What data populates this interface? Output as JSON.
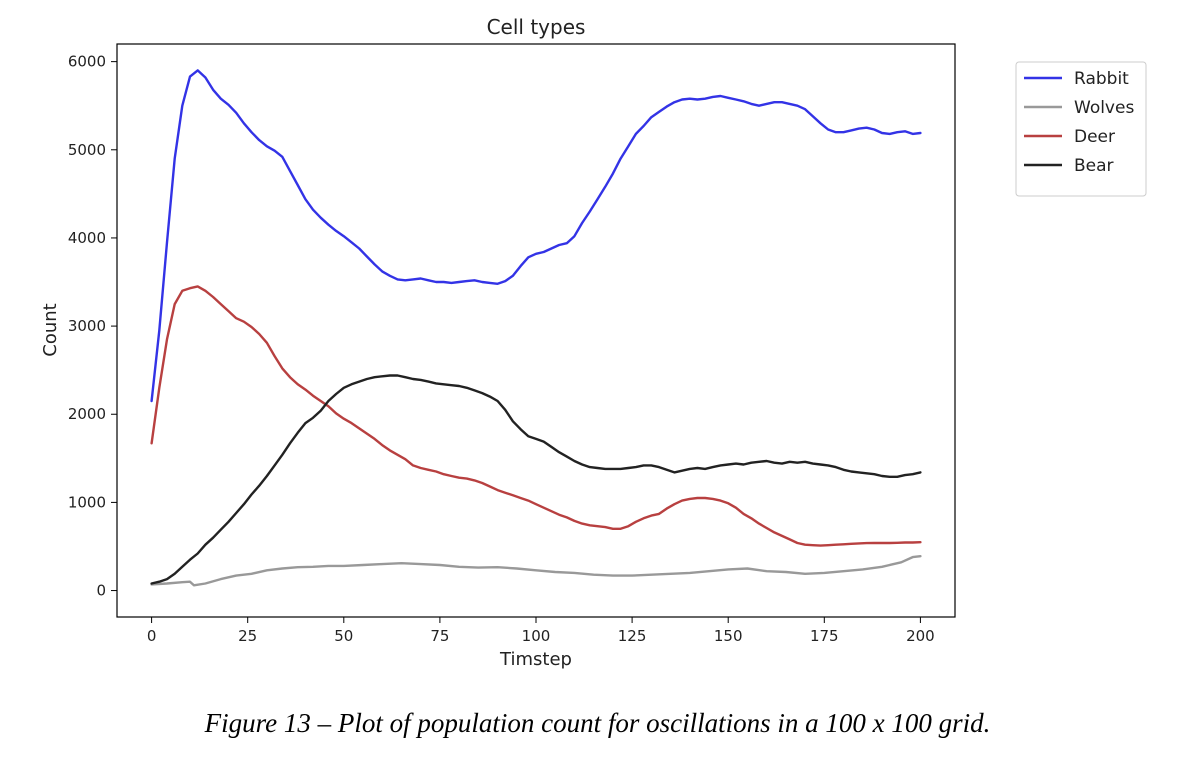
{
  "caption": "Figure 13 – Plot of population count for oscillations in a 100 x 100 grid.",
  "chart_data": {
    "type": "line",
    "title": "Cell types",
    "xlabel": "Timstep",
    "ylabel": "Count",
    "xlim": [
      -9,
      209
    ],
    "ylim": [
      -300,
      6200
    ],
    "xticks": [
      0,
      25,
      50,
      75,
      100,
      125,
      150,
      175,
      200
    ],
    "yticks": [
      0,
      1000,
      2000,
      3000,
      4000,
      5000,
      6000
    ],
    "grid": false,
    "legend_position": "outside-top-right",
    "series": [
      {
        "name": "Rabbit",
        "color": "#3333e6",
        "x": [
          0,
          2,
          4,
          6,
          8,
          10,
          12,
          14,
          16,
          18,
          20,
          22,
          24,
          26,
          28,
          30,
          32,
          34,
          36,
          38,
          40,
          42,
          44,
          46,
          48,
          50,
          52,
          54,
          56,
          58,
          60,
          62,
          64,
          66,
          68,
          70,
          72,
          74,
          76,
          78,
          80,
          82,
          84,
          86,
          88,
          90,
          92,
          94,
          96,
          98,
          100,
          102,
          104,
          106,
          108,
          110,
          112,
          114,
          116,
          118,
          120,
          122,
          124,
          126,
          128,
          130,
          132,
          134,
          136,
          138,
          140,
          142,
          144,
          146,
          148,
          150,
          152,
          154,
          156,
          158,
          160,
          162,
          164,
          166,
          168,
          170,
          172,
          174,
          176,
          178,
          180,
          182,
          184,
          186,
          188,
          190,
          192,
          194,
          196,
          198,
          200
        ],
        "values": [
          2150,
          2950,
          3950,
          4900,
          5500,
          5830,
          5900,
          5820,
          5680,
          5580,
          5510,
          5420,
          5300,
          5200,
          5110,
          5040,
          4990,
          4920,
          4760,
          4600,
          4440,
          4320,
          4230,
          4150,
          4080,
          4020,
          3950,
          3880,
          3790,
          3700,
          3620,
          3570,
          3530,
          3520,
          3530,
          3540,
          3520,
          3500,
          3500,
          3490,
          3500,
          3510,
          3520,
          3500,
          3490,
          3480,
          3510,
          3570,
          3680,
          3780,
          3820,
          3840,
          3880,
          3920,
          3940,
          4020,
          4170,
          4300,
          4440,
          4580,
          4730,
          4900,
          5040,
          5180,
          5270,
          5370,
          5430,
          5490,
          5540,
          5570,
          5580,
          5570,
          5580,
          5600,
          5610,
          5590,
          5570,
          5550,
          5520,
          5500,
          5520,
          5540,
          5540,
          5520,
          5500,
          5460,
          5380,
          5300,
          5230,
          5200,
          5200,
          5220,
          5240,
          5250,
          5230,
          5190,
          5180,
          5200,
          5210,
          5180,
          5190
        ]
      },
      {
        "name": "Wolves",
        "color": "#999999",
        "x": [
          0,
          4,
          8,
          10,
          11,
          14,
          18,
          22,
          26,
          30,
          34,
          38,
          42,
          46,
          50,
          55,
          60,
          65,
          70,
          75,
          80,
          85,
          90,
          95,
          100,
          105,
          110,
          115,
          120,
          125,
          130,
          135,
          140,
          145,
          150,
          155,
          160,
          165,
          170,
          175,
          180,
          185,
          190,
          195,
          198,
          200
        ],
        "values": [
          70,
          80,
          95,
          100,
          60,
          80,
          130,
          170,
          190,
          230,
          250,
          265,
          270,
          280,
          280,
          290,
          300,
          310,
          300,
          290,
          270,
          260,
          265,
          250,
          230,
          210,
          200,
          180,
          170,
          170,
          180,
          190,
          200,
          220,
          240,
          250,
          220,
          210,
          190,
          200,
          220,
          240,
          270,
          320,
          380,
          390
        ]
      },
      {
        "name": "Deer",
        "color": "#b84040",
        "x": [
          0,
          2,
          4,
          6,
          8,
          10,
          12,
          14,
          16,
          18,
          20,
          22,
          24,
          26,
          28,
          30,
          32,
          34,
          36,
          38,
          40,
          42,
          44,
          46,
          48,
          50,
          52,
          54,
          56,
          58,
          60,
          62,
          64,
          66,
          68,
          70,
          72,
          74,
          76,
          78,
          80,
          82,
          84,
          86,
          88,
          90,
          92,
          94,
          96,
          98,
          100,
          102,
          104,
          106,
          108,
          110,
          112,
          114,
          116,
          118,
          120,
          122,
          124,
          126,
          128,
          130,
          132,
          134,
          136,
          138,
          140,
          142,
          144,
          146,
          148,
          150,
          152,
          154,
          156,
          158,
          160,
          162,
          164,
          166,
          168,
          170,
          172,
          174,
          176,
          178,
          180,
          182,
          184,
          186,
          188,
          190,
          192,
          194,
          196,
          198,
          200
        ],
        "values": [
          1670,
          2300,
          2850,
          3250,
          3400,
          3430,
          3450,
          3400,
          3330,
          3250,
          3170,
          3090,
          3050,
          2990,
          2910,
          2810,
          2660,
          2520,
          2420,
          2340,
          2280,
          2210,
          2150,
          2090,
          2010,
          1950,
          1900,
          1840,
          1780,
          1720,
          1650,
          1590,
          1540,
          1490,
          1420,
          1390,
          1370,
          1350,
          1320,
          1300,
          1280,
          1270,
          1250,
          1220,
          1180,
          1140,
          1110,
          1080,
          1050,
          1020,
          980,
          940,
          900,
          860,
          830,
          790,
          760,
          740,
          730,
          720,
          700,
          700,
          730,
          780,
          820,
          850,
          870,
          930,
          980,
          1020,
          1040,
          1050,
          1050,
          1040,
          1020,
          990,
          940,
          870,
          820,
          760,
          710,
          660,
          620,
          580,
          540,
          520,
          515,
          510,
          515,
          520,
          525,
          530,
          535,
          538,
          540,
          540,
          540,
          542,
          545,
          545,
          548
        ]
      },
      {
        "name": "Bear",
        "color": "#222222",
        "x": [
          0,
          2,
          4,
          6,
          8,
          10,
          12,
          14,
          16,
          18,
          20,
          22,
          24,
          26,
          28,
          30,
          32,
          34,
          36,
          38,
          40,
          42,
          44,
          46,
          48,
          50,
          52,
          54,
          56,
          58,
          60,
          62,
          64,
          66,
          68,
          70,
          72,
          74,
          76,
          78,
          80,
          82,
          84,
          86,
          88,
          90,
          92,
          94,
          96,
          98,
          100,
          102,
          104,
          106,
          108,
          110,
          112,
          114,
          116,
          118,
          120,
          122,
          124,
          126,
          128,
          130,
          132,
          134,
          136,
          138,
          140,
          142,
          144,
          146,
          148,
          150,
          152,
          154,
          156,
          158,
          160,
          162,
          164,
          166,
          168,
          170,
          172,
          174,
          176,
          178,
          180,
          182,
          184,
          186,
          188,
          190,
          192,
          194,
          196,
          198,
          200
        ],
        "values": [
          80,
          100,
          130,
          190,
          270,
          350,
          420,
          520,
          600,
          690,
          780,
          880,
          980,
          1090,
          1190,
          1300,
          1420,
          1540,
          1670,
          1790,
          1900,
          1960,
          2040,
          2150,
          2230,
          2300,
          2340,
          2370,
          2400,
          2420,
          2430,
          2440,
          2440,
          2420,
          2400,
          2390,
          2370,
          2350,
          2340,
          2330,
          2320,
          2300,
          2270,
          2240,
          2200,
          2150,
          2050,
          1920,
          1830,
          1750,
          1720,
          1690,
          1630,
          1570,
          1520,
          1470,
          1430,
          1400,
          1390,
          1380,
          1380,
          1380,
          1390,
          1400,
          1420,
          1420,
          1400,
          1370,
          1340,
          1360,
          1380,
          1390,
          1380,
          1400,
          1420,
          1430,
          1440,
          1430,
          1450,
          1460,
          1470,
          1450,
          1440,
          1460,
          1450,
          1460,
          1440,
          1430,
          1420,
          1400,
          1370,
          1350,
          1340,
          1330,
          1320,
          1300,
          1290,
          1290,
          1310,
          1320,
          1340
        ]
      }
    ]
  }
}
